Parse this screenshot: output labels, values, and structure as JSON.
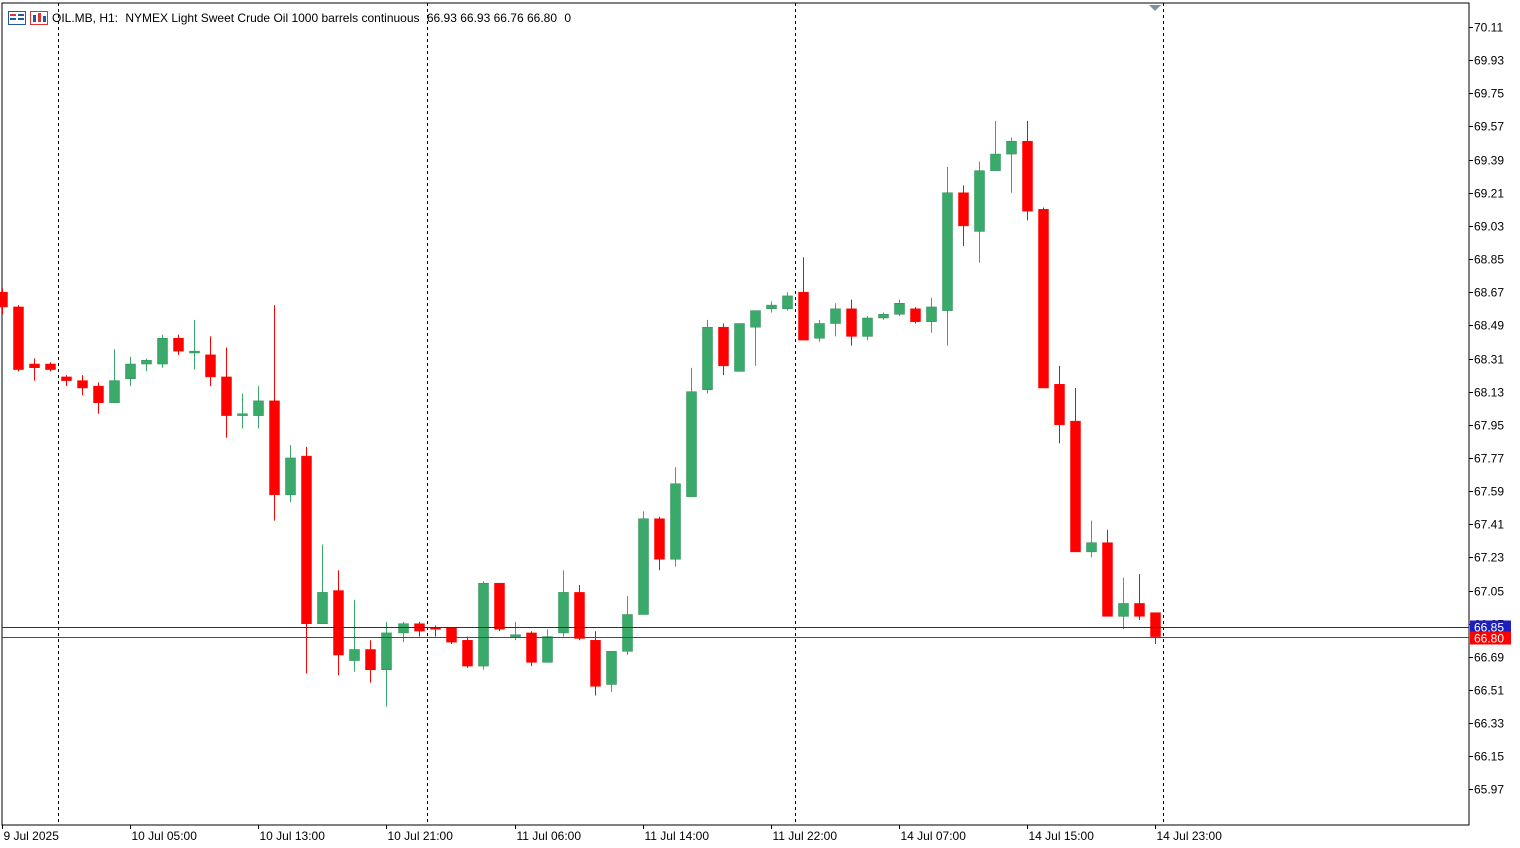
{
  "header": {
    "symbol": "OIL.MB, H1:",
    "description": "NYMEX Light Sweet Crude Oil 1000 barrels continuous",
    "ohlc": "66.93 66.93 66.76 66.80",
    "extra": "0",
    "icons": [
      "grid-menu-icon",
      "chart-type-icon"
    ]
  },
  "colors": {
    "bull": "#3aaa6a",
    "bear": "#ff0000",
    "bull_wick": "#3aaa6a",
    "bear_wick": "#ff0000",
    "bid_line": "#ff0000",
    "ask_line": "#1e1ebf",
    "grid_separator": "#000000"
  },
  "price_labels": {
    "ask": "66.85",
    "bid": "66.80"
  },
  "chart_data": {
    "type": "candlestick",
    "title": "",
    "symbol": "OIL.MB",
    "timeframe": "H1",
    "ylim": [
      65.88,
      70.16
    ],
    "y_ticks": [
      "70.11",
      "69.93",
      "69.75",
      "69.57",
      "69.39",
      "69.21",
      "69.03",
      "68.85",
      "68.67",
      "68.49",
      "68.31",
      "68.13",
      "67.95",
      "67.77",
      "67.59",
      "67.41",
      "67.23",
      "67.05",
      "66.87",
      "66.69",
      "66.51",
      "66.33",
      "66.15",
      "65.97"
    ],
    "x_labels": [
      {
        "index": 0,
        "label": "9 Jul 2025"
      },
      {
        "index": 8,
        "label": "10 Jul 05:00"
      },
      {
        "index": 16,
        "label": "10 Jul 13:00"
      },
      {
        "index": 24,
        "label": "10 Jul 21:00"
      },
      {
        "index": 32,
        "label": "11 Jul 06:00"
      },
      {
        "index": 40,
        "label": "11 Jul 14:00"
      },
      {
        "index": 48,
        "label": "11 Jul 22:00"
      },
      {
        "index": 56,
        "label": "14 Jul 07:00"
      },
      {
        "index": 64,
        "label": "14 Jul 15:00"
      },
      {
        "index": 72,
        "label": "14 Jul 23:00"
      }
    ],
    "separators_after_index": [
      3,
      26,
      49,
      72
    ],
    "grid": false,
    "legend": "none",
    "candles": [
      {
        "o": 68.67,
        "h": 68.69,
        "c": 68.59,
        "l": 68.55
      },
      {
        "o": 68.59,
        "h": 68.6,
        "c": 68.25,
        "l": 68.24
      },
      {
        "o": 68.28,
        "h": 68.31,
        "c": 68.26,
        "l": 68.19
      },
      {
        "o": 68.28,
        "h": 68.29,
        "c": 68.25,
        "l": 68.24
      },
      {
        "o": 68.21,
        "h": 68.22,
        "c": 68.19,
        "l": 68.16
      },
      {
        "o": 68.19,
        "h": 68.22,
        "c": 68.15,
        "l": 68.11
      },
      {
        "o": 68.16,
        "h": 68.18,
        "c": 68.07,
        "l": 68.01
      },
      {
        "o": 68.07,
        "h": 68.36,
        "c": 68.19,
        "l": 68.07
      },
      {
        "o": 68.2,
        "h": 68.32,
        "c": 68.28,
        "l": 68.16
      },
      {
        "o": 68.28,
        "h": 68.31,
        "c": 68.3,
        "l": 68.24
      },
      {
        "o": 68.28,
        "h": 68.44,
        "c": 68.42,
        "l": 68.26
      },
      {
        "o": 68.42,
        "h": 68.44,
        "c": 68.35,
        "l": 68.33
      },
      {
        "o": 68.34,
        "h": 68.52,
        "c": 68.35,
        "l": 68.25
      },
      {
        "o": 68.33,
        "h": 68.43,
        "c": 68.21,
        "l": 68.16
      },
      {
        "o": 68.21,
        "h": 68.37,
        "c": 68.0,
        "l": 67.88
      },
      {
        "o": 68.0,
        "h": 68.12,
        "c": 68.01,
        "l": 67.93
      },
      {
        "o": 68.0,
        "h": 68.16,
        "c": 68.08,
        "l": 67.93
      },
      {
        "o": 68.08,
        "h": 68.6,
        "c": 67.57,
        "l": 67.43
      },
      {
        "o": 67.57,
        "h": 67.84,
        "c": 67.77,
        "l": 67.53
      },
      {
        "o": 67.78,
        "h": 67.83,
        "c": 66.87,
        "l": 66.6
      },
      {
        "o": 66.87,
        "h": 67.3,
        "c": 67.04,
        "l": 66.87
      },
      {
        "o": 67.05,
        "h": 67.16,
        "c": 66.7,
        "l": 66.59
      },
      {
        "o": 66.67,
        "h": 67.0,
        "c": 66.73,
        "l": 66.61
      },
      {
        "o": 66.73,
        "h": 66.78,
        "c": 66.62,
        "l": 66.55
      },
      {
        "o": 66.62,
        "h": 66.88,
        "c": 66.82,
        "l": 66.42
      },
      {
        "o": 66.82,
        "h": 66.88,
        "c": 66.87,
        "l": 66.77
      },
      {
        "o": 66.87,
        "h": 66.88,
        "c": 66.83,
        "l": 66.8
      },
      {
        "o": 66.85,
        "h": 66.86,
        "c": 66.84,
        "l": 66.8
      },
      {
        "o": 66.85,
        "h": 66.85,
        "c": 66.77,
        "l": 66.76
      },
      {
        "o": 66.78,
        "h": 66.8,
        "c": 66.64,
        "l": 66.63
      },
      {
        "o": 66.64,
        "h": 67.1,
        "c": 67.09,
        "l": 66.62
      },
      {
        "o": 67.09,
        "h": 67.09,
        "c": 66.84,
        "l": 66.83
      },
      {
        "o": 66.8,
        "h": 66.88,
        "c": 66.81,
        "l": 66.78
      },
      {
        "o": 66.82,
        "h": 66.83,
        "c": 66.66,
        "l": 66.64
      },
      {
        "o": 66.66,
        "h": 66.84,
        "c": 66.8,
        "l": 66.66
      },
      {
        "o": 66.82,
        "h": 67.16,
        "c": 67.04,
        "l": 66.8
      },
      {
        "o": 67.04,
        "h": 67.08,
        "c": 66.79,
        "l": 66.78
      },
      {
        "o": 66.78,
        "h": 66.83,
        "c": 66.53,
        "l": 66.48
      },
      {
        "o": 66.54,
        "h": 66.72,
        "c": 66.72,
        "l": 66.5
      },
      {
        "o": 66.72,
        "h": 67.02,
        "c": 66.92,
        "l": 66.7
      },
      {
        "o": 66.92,
        "h": 67.48,
        "c": 67.44,
        "l": 66.92
      },
      {
        "o": 67.44,
        "h": 67.45,
        "c": 67.22,
        "l": 67.16
      },
      {
        "o": 67.22,
        "h": 67.72,
        "c": 67.63,
        "l": 67.18
      },
      {
        "o": 67.56,
        "h": 68.26,
        "c": 68.13,
        "l": 67.56
      },
      {
        "o": 68.14,
        "h": 68.52,
        "c": 68.48,
        "l": 68.12
      },
      {
        "o": 68.48,
        "h": 68.5,
        "c": 68.27,
        "l": 68.22
      },
      {
        "o": 68.24,
        "h": 68.5,
        "c": 68.5,
        "l": 68.24
      },
      {
        "o": 68.48,
        "h": 68.57,
        "c": 68.57,
        "l": 68.27
      },
      {
        "o": 68.58,
        "h": 68.62,
        "c": 68.6,
        "l": 68.56
      },
      {
        "o": 68.58,
        "h": 68.67,
        "c": 68.65,
        "l": 68.57
      },
      {
        "o": 68.67,
        "h": 68.86,
        "c": 68.41,
        "l": 68.41
      },
      {
        "o": 68.42,
        "h": 68.52,
        "c": 68.5,
        "l": 68.4
      },
      {
        "o": 68.5,
        "h": 68.61,
        "c": 68.58,
        "l": 68.43
      },
      {
        "o": 68.58,
        "h": 68.63,
        "c": 68.43,
        "l": 68.38
      },
      {
        "o": 68.43,
        "h": 68.54,
        "c": 68.53,
        "l": 68.41
      },
      {
        "o": 68.53,
        "h": 68.56,
        "c": 68.55,
        "l": 68.52
      },
      {
        "o": 68.55,
        "h": 68.63,
        "c": 68.61,
        "l": 68.54
      },
      {
        "o": 68.58,
        "h": 68.59,
        "c": 68.51,
        "l": 68.5
      },
      {
        "o": 68.51,
        "h": 68.64,
        "c": 68.59,
        "l": 68.45
      },
      {
        "o": 68.57,
        "h": 69.35,
        "c": 69.21,
        "l": 68.38
      },
      {
        "o": 69.21,
        "h": 69.25,
        "c": 69.03,
        "l": 68.92
      },
      {
        "o": 69.0,
        "h": 69.38,
        "c": 69.33,
        "l": 68.83
      },
      {
        "o": 69.33,
        "h": 69.6,
        "c": 69.42,
        "l": 69.33
      },
      {
        "o": 69.42,
        "h": 69.51,
        "c": 69.49,
        "l": 69.21
      },
      {
        "o": 69.49,
        "h": 69.6,
        "c": 69.11,
        "l": 69.06
      },
      {
        "o": 69.12,
        "h": 69.13,
        "c": 68.15,
        "l": 68.15
      },
      {
        "o": 68.17,
        "h": 68.27,
        "c": 67.95,
        "l": 67.85
      },
      {
        "o": 67.97,
        "h": 68.15,
        "c": 67.26,
        "l": 67.26
      },
      {
        "o": 67.26,
        "h": 67.43,
        "c": 67.31,
        "l": 67.23
      },
      {
        "o": 67.31,
        "h": 67.38,
        "c": 66.91,
        "l": 66.91
      },
      {
        "o": 66.91,
        "h": 67.12,
        "c": 66.98,
        "l": 66.84
      },
      {
        "o": 66.98,
        "h": 67.14,
        "c": 66.91,
        "l": 66.89
      },
      {
        "o": 66.93,
        "h": 66.93,
        "c": 66.8,
        "l": 66.76
      }
    ]
  }
}
